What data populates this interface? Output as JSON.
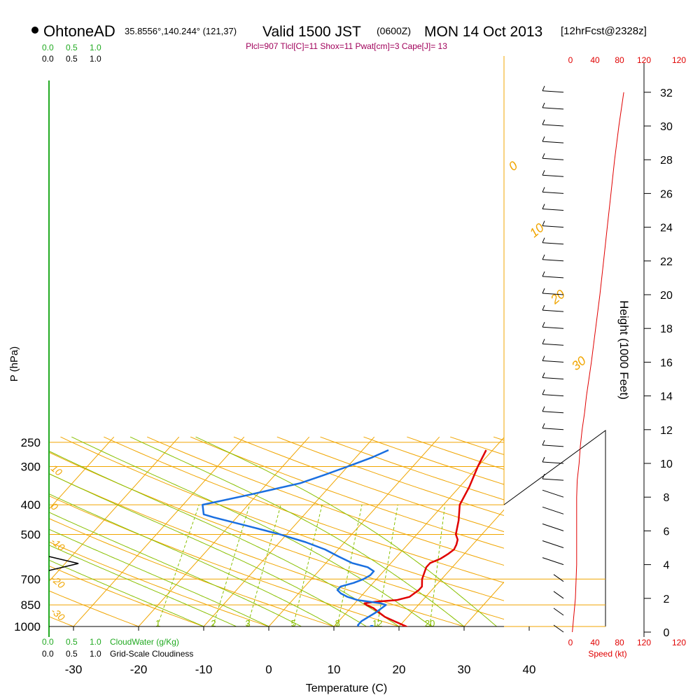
{
  "header": {
    "station": "OhtoneAD",
    "coords": "35.8556°,140.244° (121,37)",
    "valid_prefix": "Valid 1500 JST",
    "valid_z": "(0600Z)",
    "valid_date": "MON 14 Oct 2013",
    "forecast": "[12hrFcst@2328z]",
    "indices": "Plcl=907 Tlcl[C]=11 Shox=11 Pwat[cm]=3 Cape[J]= 13"
  },
  "colors": {
    "background": "#ffffff",
    "isotherm": "#f0a500",
    "dry_adiabat": "#f0a500",
    "moist_adiabat": "#88c000",
    "mixing_ratio": "#88c000",
    "temperature": "#e00000",
    "dewpoint": "#1a6fe0",
    "cloud_water": "#22aa22",
    "wind_speed": "#e00000",
    "indices_text": "#a0005a",
    "text": "#000000"
  },
  "chart_data": {
    "type": "skew-t",
    "x_axis": {
      "label": "Temperature (C)",
      "range": [
        -35,
        46
      ],
      "ticks": [
        "-30",
        "-20",
        "-10",
        "0",
        "10",
        "20",
        "30",
        "40"
      ]
    },
    "y_axis": {
      "label": "P (hPa)",
      "scale": "log",
      "range": [
        250,
        1020
      ],
      "ticks": [
        "250",
        "300",
        "400",
        "500",
        "700",
        "850",
        "1000"
      ]
    },
    "height_axis": {
      "label": "Height (1000 Feet)",
      "ticks": [
        "0",
        "2",
        "4",
        "6",
        "8",
        "10",
        "12",
        "14",
        "16",
        "18",
        "20",
        "22",
        "24",
        "26",
        "28",
        "30",
        "32"
      ]
    },
    "dry_adiabat_labels": [
      {
        "text": "10",
        "p": 300
      },
      {
        "text": "0",
        "p": 400
      },
      {
        "text": "-10",
        "p": 520
      },
      {
        "text": "-20",
        "p": 690
      },
      {
        "text": "-30",
        "p": 880
      }
    ],
    "moist_adiabat_labels": [
      "0",
      "10",
      "20",
      "30"
    ],
    "mixing_ratio_labels": [
      "1",
      "2",
      "3",
      "5",
      "8",
      "12",
      "20"
    ],
    "temperature_profile": {
      "name": "Temperature",
      "points": [
        {
          "p": 1006,
          "t": 21.5
        },
        {
          "p": 990,
          "t": 20.5
        },
        {
          "p": 960,
          "t": 18.5
        },
        {
          "p": 930,
          "t": 16.5
        },
        {
          "p": 900,
          "t": 15.0
        },
        {
          "p": 870,
          "t": 13.5
        },
        {
          "p": 850,
          "t": 12.0
        },
        {
          "p": 840,
          "t": 11.5
        },
        {
          "p": 830,
          "t": 13.0
        },
        {
          "p": 820,
          "t": 16.0
        },
        {
          "p": 800,
          "t": 17.5
        },
        {
          "p": 760,
          "t": 18.0
        },
        {
          "p": 740,
          "t": 18.0
        },
        {
          "p": 700,
          "t": 17.0
        },
        {
          "p": 670,
          "t": 16.5
        },
        {
          "p": 640,
          "t": 16.0
        },
        {
          "p": 620,
          "t": 16.0
        },
        {
          "p": 600,
          "t": 17.0
        },
        {
          "p": 580,
          "t": 17.5
        },
        {
          "p": 560,
          "t": 17.8
        },
        {
          "p": 540,
          "t": 17.5
        },
        {
          "p": 520,
          "t": 17.0
        },
        {
          "p": 500,
          "t": 16.0
        },
        {
          "p": 450,
          "t": 14.5
        },
        {
          "p": 400,
          "t": 12.5
        },
        {
          "p": 350,
          "t": 11.5
        },
        {
          "p": 300,
          "t": 10.0
        },
        {
          "p": 265,
          "t": 9.0
        }
      ]
    },
    "dewpoint_profile": {
      "name": "Dewpoint",
      "points": [
        {
          "p": 1007,
          "t": 14.0
        },
        {
          "p": 990,
          "t": 13.5
        },
        {
          "p": 960,
          "t": 13.5
        },
        {
          "p": 930,
          "t": 14.0
        },
        {
          "p": 900,
          "t": 14.5
        },
        {
          "p": 870,
          "t": 14.8
        },
        {
          "p": 850,
          "t": 15.0
        },
        {
          "p": 840,
          "t": 14.0
        },
        {
          "p": 820,
          "t": 10.0
        },
        {
          "p": 800,
          "t": 8.0
        },
        {
          "p": 780,
          "t": 6.5
        },
        {
          "p": 760,
          "t": 5.5
        },
        {
          "p": 740,
          "t": 5.5
        },
        {
          "p": 720,
          "t": 7.0
        },
        {
          "p": 700,
          "t": 8.0
        },
        {
          "p": 680,
          "t": 8.5
        },
        {
          "p": 660,
          "t": 8.5
        },
        {
          "p": 640,
          "t": 7.0
        },
        {
          "p": 620,
          "t": 4.0
        },
        {
          "p": 590,
          "t": 1.0
        },
        {
          "p": 560,
          "t": -2.0
        },
        {
          "p": 530,
          "t": -6.0
        },
        {
          "p": 500,
          "t": -11.0
        },
        {
          "p": 470,
          "t": -17.0
        },
        {
          "p": 440,
          "t": -23.5
        },
        {
          "p": 430,
          "t": -25.5
        },
        {
          "p": 400,
          "t": -27.0
        },
        {
          "p": 370,
          "t": -21.0
        },
        {
          "p": 340,
          "t": -15.0
        },
        {
          "p": 320,
          "t": -12.5
        },
        {
          "p": 300,
          "t": -10.0
        },
        {
          "p": 280,
          "t": -7.5
        },
        {
          "p": 265,
          "t": -6.0
        }
      ]
    },
    "surface_markers": [
      {
        "name": "surface-temperature",
        "p": 1010,
        "t": 21.0
      },
      {
        "name": "surface-dewpoint",
        "p": 1010,
        "t": 16.0
      }
    ],
    "wind_speed": {
      "axis_label": "Speed (kt)",
      "ticks": [
        "0",
        "40",
        "80",
        "120"
      ],
      "range": [
        0,
        120
      ],
      "heights_kft": [
        0,
        2,
        4,
        6,
        8,
        9,
        10,
        11,
        12,
        13,
        14,
        15,
        16,
        18,
        20,
        22,
        24,
        26,
        28,
        30,
        32
      ],
      "speeds_kt": [
        3,
        8,
        10,
        10,
        10,
        11,
        14,
        16,
        19,
        23,
        26,
        30,
        34,
        41,
        48,
        54,
        60,
        66,
        72,
        79,
        87
      ]
    },
    "cloud_water": {
      "label": "CloudWater (g/Kg)",
      "ticks": [
        "0.0",
        "0.5",
        "1.0"
      ]
    },
    "grid_cloudiness": {
      "label": "Grid-Scale Cloudiness",
      "ticks": [
        "0.0",
        "0.5",
        "1.0"
      ]
    }
  }
}
